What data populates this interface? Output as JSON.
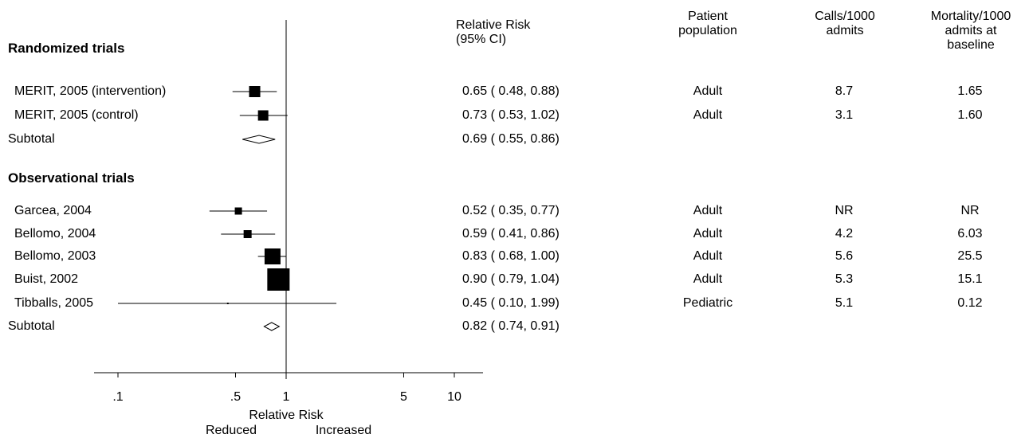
{
  "columns": {
    "relative_risk": "Relative Risk\n(95% CI)",
    "patient_population": "Patient\npopulation",
    "calls": "Calls/1000\nadmits",
    "mortality": "Mortality/1000\nadmits at\nbaseline"
  },
  "chart_data": {
    "type": "forest",
    "xscale": "log",
    "xticks": [
      ".1",
      ".5",
      "1",
      "5",
      "10"
    ],
    "xtick_values": [
      0.1,
      0.5,
      1,
      5,
      10
    ],
    "xlim": [
      0.07,
      18
    ],
    "xlabel": "Relative Risk",
    "reduced_label": "Reduced",
    "increased_label": "Increased",
    "groups": [
      {
        "title": "Randomized trials",
        "studies": [
          {
            "label": "MERIT, 2005 (intervention)",
            "rr": 0.65,
            "lo": 0.48,
            "hi": 0.88,
            "ci_text": "0.65 ( 0.48, 0.88)",
            "population": "Adult",
            "calls": "8.7",
            "mortality": "1.65",
            "weight": 14
          },
          {
            "label": "MERIT, 2005 (control)",
            "rr": 0.73,
            "lo": 0.53,
            "hi": 1.02,
            "ci_text": "0.73 ( 0.53, 1.02)",
            "population": "Adult",
            "calls": "3.1",
            "mortality": "1.60",
            "weight": 13
          }
        ],
        "subtotal": {
          "label": "Subtotal",
          "rr": 0.69,
          "lo": 0.55,
          "hi": 0.86,
          "ci_text": "0.69 ( 0.55, 0.86)"
        }
      },
      {
        "title": "Observational trials",
        "studies": [
          {
            "label": "Garcea, 2004",
            "rr": 0.52,
            "lo": 0.35,
            "hi": 0.77,
            "ci_text": "0.52 ( 0.35, 0.77)",
            "population": "Adult",
            "calls": "NR",
            "mortality": "NR",
            "weight": 9
          },
          {
            "label": "Bellomo, 2004",
            "rr": 0.59,
            "lo": 0.41,
            "hi": 0.86,
            "ci_text": "0.59 ( 0.41, 0.86)",
            "population": "Adult",
            "calls": "4.2",
            "mortality": "6.03",
            "weight": 10
          },
          {
            "label": "Bellomo, 2003",
            "rr": 0.83,
            "lo": 0.68,
            "hi": 1.0,
            "ci_text": "0.83 ( 0.68, 1.00)",
            "population": "Adult",
            "calls": "5.6",
            "mortality": "25.5",
            "weight": 20
          },
          {
            "label": "Buist, 2002",
            "rr": 0.9,
            "lo": 0.79,
            "hi": 1.04,
            "ci_text": "0.90 ( 0.79, 1.04)",
            "population": "Adult",
            "calls": "5.3",
            "mortality": "15.1",
            "weight": 28
          },
          {
            "label": "Tibballs, 2005",
            "rr": 0.45,
            "lo": 0.1,
            "hi": 1.99,
            "ci_text": "0.45 ( 0.10, 1.99)",
            "population": "Pediatric",
            "calls": "5.1",
            "mortality": "0.12",
            "weight": 2
          }
        ],
        "subtotal": {
          "label": "Subtotal",
          "rr": 0.82,
          "lo": 0.74,
          "hi": 0.91,
          "ci_text": "0.82 ( 0.74, 0.91)"
        }
      }
    ]
  }
}
